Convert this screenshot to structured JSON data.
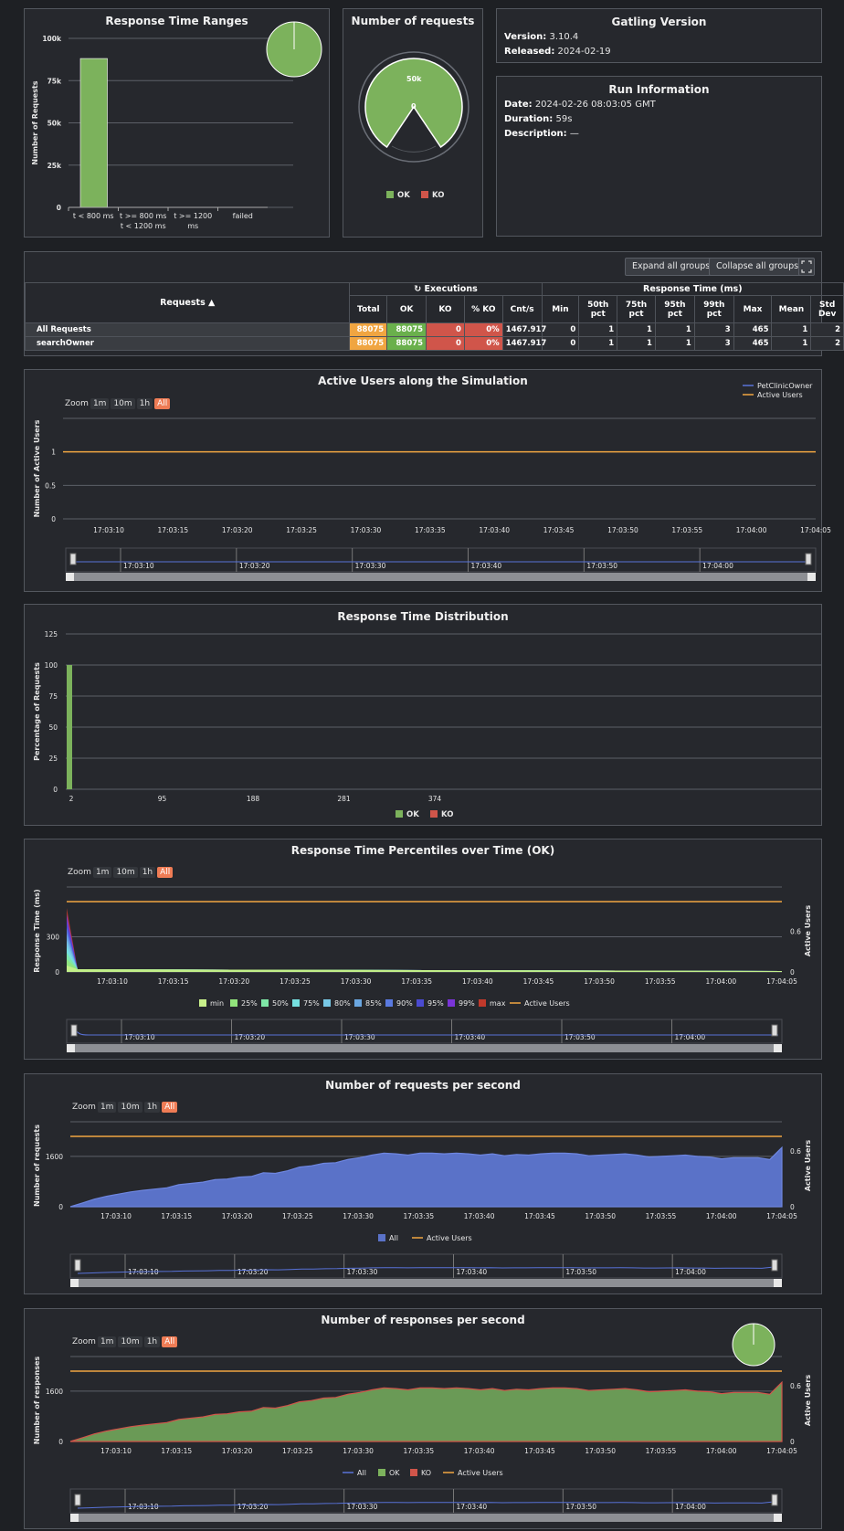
{
  "rtr": {
    "title": "Response Time Ranges",
    "ylabel": "Number of Requests",
    "ticks": [
      "100k",
      "75k",
      "50k",
      "25k",
      "0"
    ],
    "cats": [
      [
        "t < 800 ms",
        ""
      ],
      [
        "t >= 800 ms",
        "t < 1200 ms"
      ],
      [
        "t >= 1200",
        "ms"
      ],
      [
        "failed",
        ""
      ]
    ],
    "chart_data": {
      "type": "bar",
      "categories": [
        "t < 800 ms",
        "t >= 800 ms t < 1200 ms",
        "t >= 1200 ms",
        "failed"
      ],
      "values": [
        88075,
        0,
        0,
        0
      ],
      "ylabel": "Number of Requests",
      "ylim": [
        0,
        100000
      ]
    },
    "colors": {
      "ok": "#7cb25c"
    }
  },
  "nreq": {
    "title": "Number of requests",
    "label_50k": "50k",
    "label_0": "0",
    "legend_ok": "OK",
    "legend_ko": "KO"
  },
  "gatling": {
    "title": "Gatling Version",
    "version_label": "Version:",
    "version": "3.10.4",
    "released_label": "Released:",
    "released": "2024-02-19"
  },
  "run": {
    "title": "Run Information",
    "date_label": "Date:",
    "date": "2024-02-26 08:03:05 GMT",
    "duration_label": "Duration:",
    "duration": "59s",
    "description_label": "Description:",
    "description": "—"
  },
  "stats": {
    "expand_label": "Expand all groups",
    "collapse_label": "Collapse all groups",
    "requests_header": "Requests ▲",
    "executions_header": "Executions",
    "response_time_header": "Response Time (ms)",
    "columns": [
      "Total",
      "OK",
      "KO",
      "% KO",
      "Cnt/s",
      "Min",
      "50th pct",
      "75th pct",
      "95th pct",
      "99th pct",
      "Max",
      "Mean",
      "Std Dev"
    ],
    "rows": [
      {
        "name": "All Requests",
        "total": "88075",
        "ok": "88075",
        "ko": "0",
        "pko": "0%",
        "cnt": "1467.917",
        "min": "0",
        "p50": "1",
        "p75": "1",
        "p95": "1",
        "p99": "3",
        "max": "465",
        "mean": "1",
        "std": "2"
      },
      {
        "name": "searchOwner",
        "total": "88075",
        "ok": "88075",
        "ko": "0",
        "pko": "0%",
        "cnt": "1467.917",
        "min": "0",
        "p50": "1",
        "p75": "1",
        "p95": "1",
        "p99": "3",
        "max": "465",
        "mean": "1",
        "std": "2"
      }
    ]
  },
  "zoom": {
    "label": "Zoom",
    "b1": "1m",
    "b2": "10m",
    "b3": "1h",
    "b4": "All"
  },
  "time_ticks": [
    "17:03:10",
    "17:03:15",
    "17:03:20",
    "17:03:25",
    "17:03:30",
    "17:03:35",
    "17:03:40",
    "17:03:45",
    "17:03:50",
    "17:03:55",
    "17:04:00",
    "17:04:05"
  ],
  "nav_ticks": [
    "17:03:10",
    "17:03:20",
    "17:03:30",
    "17:03:40",
    "17:03:50",
    "17:04:00"
  ],
  "active": {
    "title": "Active Users along the Simulation",
    "ylabel": "Number of Active Users",
    "ticks": [
      "1",
      "0.5",
      "0"
    ],
    "legend": [
      "PetClinicOwner",
      "Active Users"
    ],
    "chart_data": {
      "type": "line",
      "series": [
        {
          "name": "Active Users",
          "values": [
            1,
            1
          ]
        }
      ],
      "ylabel": "Number of Active Users",
      "ylim": [
        0,
        1.5
      ]
    }
  },
  "dist": {
    "title": "Response Time Distribution",
    "ylabel": "Percentage of Requests",
    "ticks": [
      "125",
      "100",
      "75",
      "50",
      "25",
      "0"
    ],
    "xticks": [
      "2",
      "95",
      "188",
      "281",
      "374"
    ],
    "legend_ok": "OK",
    "legend_ko": "KO",
    "chart_data": {
      "type": "bar",
      "x": [
        2
      ],
      "values": [
        100
      ],
      "ylabel": "Percentage of Requests",
      "ylim": [
        0,
        125
      ]
    }
  },
  "pct": {
    "title": "Response Time Percentiles over Time (OK)",
    "ylabel": "Response Time (ms)",
    "y2label": "Active Users",
    "ticks": [
      "300",
      "0"
    ],
    "ticks2": [
      "0.6",
      "0"
    ],
    "legend": [
      "min",
      "25%",
      "50%",
      "75%",
      "80%",
      "85%",
      "90%",
      "95%",
      "99%",
      "max",
      "Active Users"
    ],
    "legend_colors": [
      "#c8f08a",
      "#92e47c",
      "#7ee6a6",
      "#76e0e0",
      "#78c8e6",
      "#6aa6e0",
      "#5a7ae0",
      "#4a4ad0",
      "#7a34d8",
      "#c0392b",
      "#f0a541"
    ]
  },
  "rps": {
    "title": "Number of requests per second",
    "ylabel": "Number of requests",
    "y2label": "Active Users",
    "ticks": [
      "1600",
      "0"
    ],
    "ticks2": [
      "0.6",
      "0"
    ],
    "legend_all": "All",
    "legend_active": "Active Users",
    "chart_data": {
      "type": "area",
      "series": [
        {
          "name": "All",
          "values": [
            0,
            120,
            240,
            330,
            400,
            470,
            520,
            560,
            600,
            700,
            740,
            780,
            860,
            880,
            940,
            960,
            1080,
            1060,
            1140,
            1260,
            1300,
            1380,
            1400,
            1500,
            1560,
            1640,
            1700,
            1680,
            1640,
            1700,
            1700,
            1680,
            1700,
            1680,
            1640,
            1680,
            1620,
            1660,
            1640,
            1680,
            1700,
            1700,
            1680,
            1620,
            1640,
            1660,
            1680,
            1640,
            1580,
            1600,
            1620,
            1640,
            1600,
            1580,
            1520,
            1560,
            1560,
            1560,
            1500,
            1880
          ]
        }
      ],
      "ylabel": "Number of requests",
      "ylim": [
        0,
        2700
      ]
    }
  },
  "resp": {
    "title": "Number of responses per second",
    "ylabel": "Number of responses",
    "y2label": "Active Users",
    "ticks": [
      "1600",
      "0"
    ],
    "ticks2": [
      "0.6",
      "0"
    ],
    "legend_all": "All",
    "legend_ok": "OK",
    "legend_ko": "KO",
    "legend_active": "Active Users",
    "chart_data": {
      "type": "area",
      "series": [
        {
          "name": "OK",
          "values": [
            0,
            120,
            240,
            330,
            400,
            470,
            520,
            560,
            600,
            700,
            740,
            780,
            860,
            880,
            940,
            960,
            1080,
            1060,
            1140,
            1260,
            1300,
            1380,
            1400,
            1500,
            1560,
            1640,
            1700,
            1680,
            1640,
            1700,
            1700,
            1680,
            1700,
            1680,
            1640,
            1680,
            1620,
            1660,
            1640,
            1680,
            1700,
            1700,
            1680,
            1620,
            1640,
            1660,
            1680,
            1640,
            1580,
            1600,
            1620,
            1640,
            1600,
            1580,
            1520,
            1560,
            1560,
            1560,
            1500,
            1880
          ]
        },
        {
          "name": "KO",
          "values": []
        }
      ],
      "ylabel": "Number of responses",
      "ylim": [
        0,
        2700
      ]
    }
  }
}
